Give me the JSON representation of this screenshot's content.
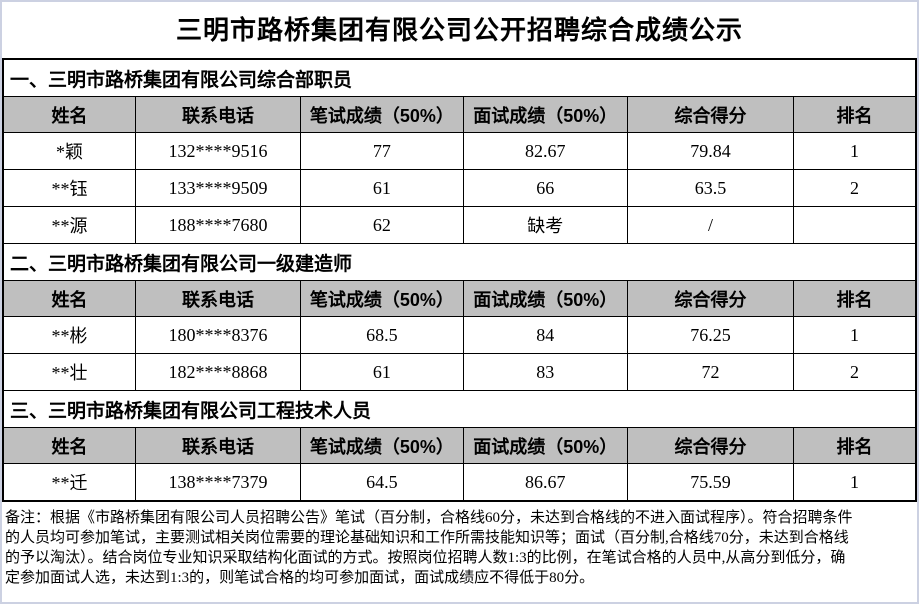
{
  "page": {
    "title": "三明市路桥集团有限公司公开招聘综合成绩公示"
  },
  "table": {
    "columns": [
      "姓名",
      "联系电话",
      "笔试成绩（50%）",
      "面试成绩（50%）",
      "综合得分",
      "排名"
    ],
    "sections": [
      {
        "title": "一、三明市路桥集团有限公司综合部职员",
        "rows": [
          [
            "*颖",
            "132****9516",
            "77",
            "82.67",
            "79.84",
            "1"
          ],
          [
            "**钰",
            "133****9509",
            "61",
            "66",
            "63.5",
            "2"
          ],
          [
            "**源",
            "188****7680",
            "62",
            "缺考",
            "/",
            ""
          ]
        ]
      },
      {
        "title": "二、三明市路桥集团有限公司一级建造师",
        "rows": [
          [
            "**彬",
            "180****8376",
            "68.5",
            "84",
            "76.25",
            "1"
          ],
          [
            "**壮",
            "182****8868",
            "61",
            "83",
            "72",
            "2"
          ]
        ]
      },
      {
        "title": "三、三明市路桥集团有限公司工程技术人员",
        "rows": [
          [
            "**迁",
            "138****7379",
            "64.5",
            "86.67",
            "75.59",
            "1"
          ]
        ]
      }
    ]
  },
  "note": {
    "lines": [
      "备注：根据《市路桥集团有限公司人员招聘公告》笔试（百分制，合格线60分，未达到合格线的不进入面试程序）。符合招聘条件",
      "的人员均可参加笔试，主要测试相关岗位需要的理论基础知识和工作所需技能知识等；面试（百分制,合格线70分，未达到合格线",
      "的予以淘汰）。结合岗位专业知识采取结构化面试的方式。按照岗位招聘人数1:3的比例，在笔试合格的人员中,从高分到低分，确",
      "定参加面试人选，未达到1:3的，则笔试合格的均可参加面试，面试成绩应不得低于80分。"
    ]
  },
  "colors": {
    "header_bg": "#bfbfbf",
    "table_border": "#000000",
    "page_edge": "#ccd1e2",
    "text": "#000000"
  }
}
